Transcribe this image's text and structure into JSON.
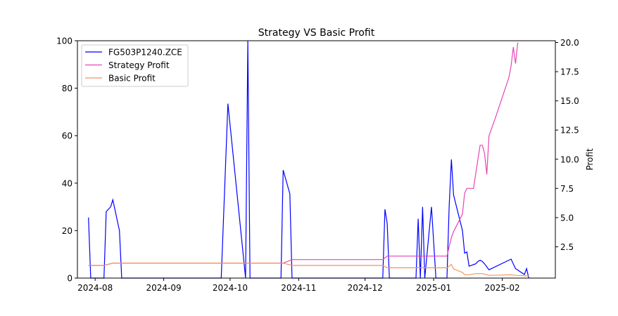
{
  "chart_data": {
    "type": "line",
    "title": "Strategy VS Basic Profit",
    "xlabel": "",
    "ylabel_left": "",
    "ylabel_right": "Profit",
    "x_ticks": [
      "2024-08",
      "2024-09",
      "2024-10",
      "2024-11",
      "2024-12",
      "2025-01",
      "2025-02"
    ],
    "y_left_lim": [
      0,
      100
    ],
    "y_left_ticks": [
      "0",
      "20",
      "40",
      "60",
      "80",
      "100"
    ],
    "y_right_lim": [
      0,
      20
    ],
    "y_right_ticks": [
      "2.5",
      "5.0",
      "7.5",
      "10.0",
      "12.5",
      "15.0",
      "17.5",
      "20.0"
    ],
    "legend_position": "top-left",
    "grid": false,
    "series": [
      {
        "name": "FG503P1240.ZCE",
        "axis": "left",
        "color": "#0000ff",
        "points": [
          [
            "2024-07-29",
            25.5
          ],
          [
            "2024-07-30",
            0
          ],
          [
            "2024-08-02",
            0
          ],
          [
            "2024-08-05",
            0
          ],
          [
            "2024-08-06",
            28
          ],
          [
            "2024-08-08",
            30
          ],
          [
            "2024-08-09",
            33
          ],
          [
            "2024-08-12",
            20
          ],
          [
            "2024-08-13",
            0
          ],
          [
            "2024-09-27",
            0
          ],
          [
            "2024-09-30",
            73.5
          ],
          [
            "2024-10-08",
            0
          ],
          [
            "2024-10-09",
            100
          ],
          [
            "2024-10-10",
            0
          ],
          [
            "2024-10-24",
            0
          ],
          [
            "2024-10-25",
            45.5
          ],
          [
            "2024-10-28",
            35.5
          ],
          [
            "2024-10-29",
            0
          ],
          [
            "2024-12-09",
            0
          ],
          [
            "2024-12-10",
            29
          ],
          [
            "2024-12-11",
            23
          ],
          [
            "2024-12-12",
            0
          ],
          [
            "2024-12-24",
            0
          ],
          [
            "2024-12-25",
            25
          ],
          [
            "2024-12-26",
            0
          ],
          [
            "2024-12-27",
            30
          ],
          [
            "2024-12-28",
            0
          ],
          [
            "2024-12-30",
            20
          ],
          [
            "2024-12-31",
            30
          ],
          [
            "2025-01-02",
            0
          ],
          [
            "2025-01-07",
            0
          ],
          [
            "2025-01-08",
            30
          ],
          [
            "2025-01-09",
            50
          ],
          [
            "2025-01-10",
            35
          ],
          [
            "2025-01-14",
            20
          ],
          [
            "2025-01-15",
            10.5
          ],
          [
            "2025-01-16",
            11
          ],
          [
            "2025-01-17",
            5
          ],
          [
            "2025-01-20",
            6
          ],
          [
            "2025-01-21",
            7
          ],
          [
            "2025-01-22",
            7.5
          ],
          [
            "2025-01-23",
            7
          ],
          [
            "2025-01-24",
            6
          ],
          [
            "2025-01-26",
            3.5
          ],
          [
            "2025-02-05",
            8
          ],
          [
            "2025-02-07",
            4
          ],
          [
            "2025-02-11",
            1.5
          ],
          [
            "2025-02-12",
            4
          ],
          [
            "2025-02-13",
            0
          ]
        ]
      },
      {
        "name": "Strategy Profit",
        "axis": "right",
        "color": "#e645b5",
        "points": [
          [
            "2024-07-29",
            0.9
          ],
          [
            "2024-08-05",
            0.9
          ],
          [
            "2024-08-09",
            1.1
          ],
          [
            "2024-08-12",
            1.1
          ],
          [
            "2024-10-25",
            1.1
          ],
          [
            "2024-10-29",
            1.4
          ],
          [
            "2024-12-09",
            1.4
          ],
          [
            "2024-12-11",
            1.7
          ],
          [
            "2025-01-07",
            1.7
          ],
          [
            "2025-01-08",
            2.5
          ],
          [
            "2025-01-09",
            3.3
          ],
          [
            "2025-01-10",
            3.8
          ],
          [
            "2025-01-14",
            5.3
          ],
          [
            "2025-01-15",
            7.1
          ],
          [
            "2025-01-16",
            7.5
          ],
          [
            "2025-01-17",
            7.5
          ],
          [
            "2025-01-19",
            7.5
          ],
          [
            "2025-01-21",
            10
          ],
          [
            "2025-01-22",
            11.2
          ],
          [
            "2025-01-23",
            11.2
          ],
          [
            "2025-01-24",
            10.5
          ],
          [
            "2025-01-25",
            8.7
          ],
          [
            "2025-01-26",
            12
          ],
          [
            "2025-01-29",
            13.6
          ],
          [
            "2025-02-04",
            17
          ],
          [
            "2025-02-05",
            18
          ],
          [
            "2025-02-06",
            19.6
          ],
          [
            "2025-02-07",
            18.2
          ],
          [
            "2025-02-08",
            20
          ]
        ]
      },
      {
        "name": "Basic Profit",
        "axis": "right",
        "color": "#f0955a",
        "points": [
          [
            "2024-07-29",
            0.9
          ],
          [
            "2024-08-05",
            0.9
          ],
          [
            "2024-08-09",
            1.1
          ],
          [
            "2024-08-12",
            1.1
          ],
          [
            "2024-10-25",
            1.1
          ],
          [
            "2024-10-29",
            0.9
          ],
          [
            "2024-12-09",
            0.9
          ],
          [
            "2024-12-11",
            0.7
          ],
          [
            "2025-01-07",
            0.7
          ],
          [
            "2025-01-09",
            1
          ],
          [
            "2025-01-10",
            0.6
          ],
          [
            "2025-01-14",
            0.3
          ],
          [
            "2025-01-15",
            0.1
          ],
          [
            "2025-01-17",
            0.1
          ],
          [
            "2025-01-20",
            0.2
          ],
          [
            "2025-01-23",
            0.2
          ],
          [
            "2025-01-26",
            0.05
          ],
          [
            "2025-02-05",
            0.1
          ],
          [
            "2025-02-07",
            0.05
          ],
          [
            "2025-02-13",
            0
          ]
        ]
      }
    ]
  }
}
